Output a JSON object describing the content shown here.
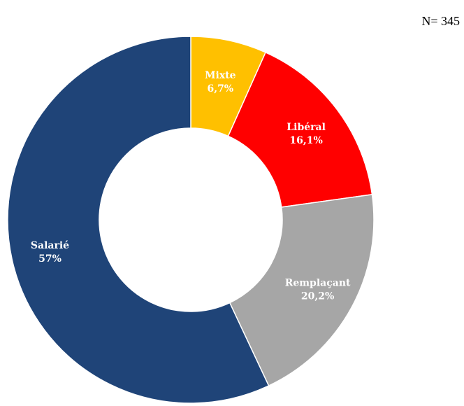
{
  "header": {
    "sample_size": "N= 345"
  },
  "chart_data": {
    "type": "pie",
    "variant": "donut",
    "title": "",
    "slices": [
      {
        "label": "Mixte",
        "value": 6.7,
        "value_label": "6,7%",
        "color": "#FFC000"
      },
      {
        "label": "Libéral",
        "value": 16.1,
        "value_label": "16,1%",
        "color": "#FF0000"
      },
      {
        "label": "Remplaçant",
        "value": 20.2,
        "value_label": "20,2%",
        "color": "#A6A6A6"
      },
      {
        "label": "Salarié",
        "value": 57,
        "value_label": "57%",
        "color": "#1F4478"
      }
    ],
    "start_angle": "12 o'clock",
    "direction": "clockwise",
    "legend": "none",
    "label_color": "#FFFFFF"
  }
}
